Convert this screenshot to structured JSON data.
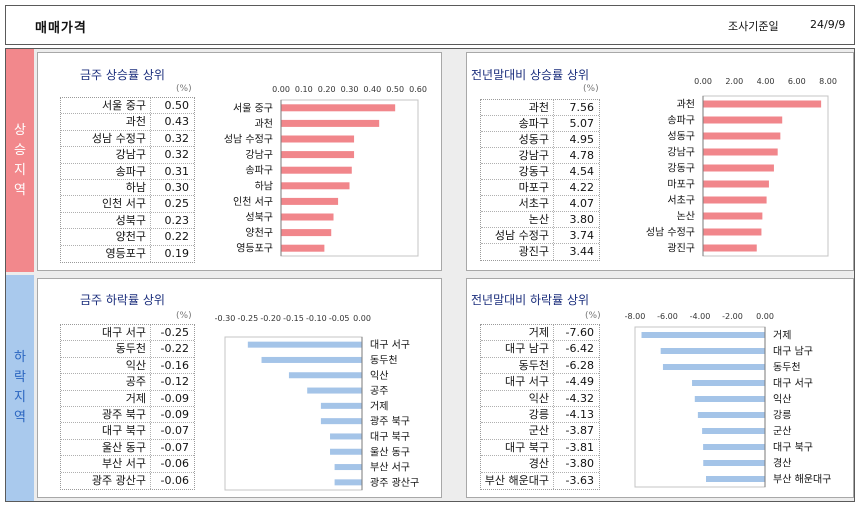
{
  "header": {
    "title": "매매가격",
    "date_label": "조사기준일",
    "date": "24/9/9"
  },
  "sections": [
    {
      "label": "상승지역",
      "bg": "#f2888c",
      "text_color": "#ffffff"
    },
    {
      "label": "하락지역",
      "bg": "#a9c9ed",
      "text_color": "#2a65c0"
    }
  ],
  "chart_data": [
    {
      "type": "bar",
      "orientation": "horizontal",
      "title": "금주 상승률 상위",
      "unit": "(%)",
      "categories": [
        "서울 중구",
        "과천",
        "성남 수정구",
        "강남구",
        "송파구",
        "하남",
        "인천 서구",
        "성북구",
        "양천구",
        "영등포구"
      ],
      "values": [
        0.5,
        0.43,
        0.32,
        0.32,
        0.31,
        0.3,
        0.25,
        0.23,
        0.22,
        0.19
      ],
      "xlim": [
        0,
        0.6
      ],
      "xticks": [
        0.0,
        0.1,
        0.2,
        0.3,
        0.4,
        0.5,
        0.6
      ],
      "bar_color": "#f1868b"
    },
    {
      "type": "bar",
      "orientation": "horizontal",
      "title": "전년말대비 상승률 상위",
      "unit": "(%)",
      "categories": [
        "과천",
        "송파구",
        "성동구",
        "강남구",
        "강동구",
        "마포구",
        "서초구",
        "논산",
        "성남 수정구",
        "광진구"
      ],
      "values": [
        7.56,
        5.07,
        4.95,
        4.78,
        4.54,
        4.22,
        4.07,
        3.8,
        3.74,
        3.44
      ],
      "xlim": [
        0,
        8
      ],
      "xticks": [
        0,
        2,
        4,
        6,
        8
      ],
      "bar_color": "#f1868b"
    },
    {
      "type": "bar",
      "orientation": "horizontal",
      "title": "금주 하락률 상위",
      "unit": "(%)",
      "categories": [
        "대구 서구",
        "동두천",
        "익산",
        "공주",
        "거제",
        "광주 북구",
        "대구 북구",
        "울산 동구",
        "부산 서구",
        "광주 광산구"
      ],
      "values": [
        -0.25,
        -0.22,
        -0.16,
        -0.12,
        -0.09,
        -0.09,
        -0.07,
        -0.07,
        -0.06,
        -0.06
      ],
      "xlim": [
        -0.3,
        0
      ],
      "xticks": [
        -0.3,
        -0.25,
        -0.2,
        -0.15,
        -0.1,
        -0.05,
        0
      ],
      "bar_color": "#a4c4e8"
    },
    {
      "type": "bar",
      "orientation": "horizontal",
      "title": "전년말대비 하락률 상위",
      "unit": "(%)",
      "categories": [
        "거제",
        "대구 남구",
        "동두천",
        "대구 서구",
        "익산",
        "강릉",
        "군산",
        "대구 북구",
        "경산",
        "부산 해운대구"
      ],
      "values": [
        -7.6,
        -6.42,
        -6.28,
        -4.49,
        -4.32,
        -4.13,
        -3.87,
        -3.81,
        -3.8,
        -3.63
      ],
      "xlim": [
        -8,
        0
      ],
      "xticks": [
        -8,
        -6,
        -4,
        -2,
        0
      ],
      "bar_color": "#a4c4e8"
    }
  ]
}
